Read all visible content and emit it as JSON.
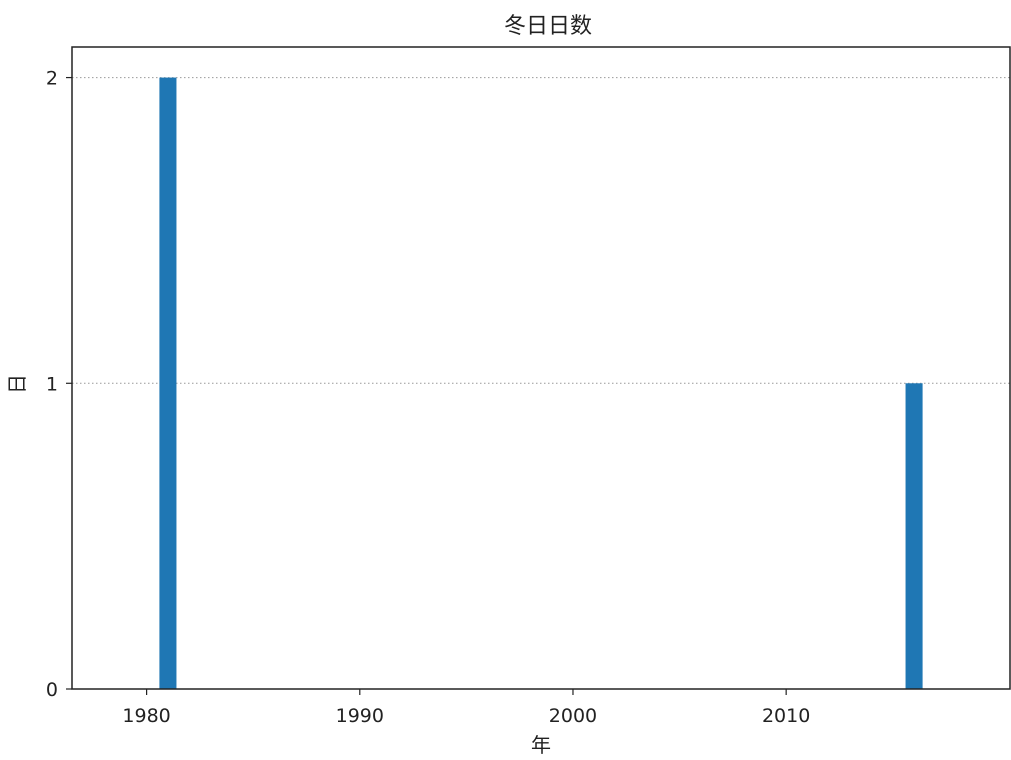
{
  "chart_data": {
    "type": "bar",
    "title": "冬日日数",
    "xlabel": "年",
    "ylabel": "日",
    "x": [
      1981,
      2016
    ],
    "values": [
      2,
      1
    ],
    "xlim": [
      1976.5,
      2020.5
    ],
    "ylim": [
      0,
      2.1
    ],
    "xticks": [
      1980,
      1990,
      2000,
      2010
    ],
    "yticks": [
      0,
      1,
      2
    ],
    "grid": "y-dotted",
    "bar_color": "#1f77b4"
  }
}
